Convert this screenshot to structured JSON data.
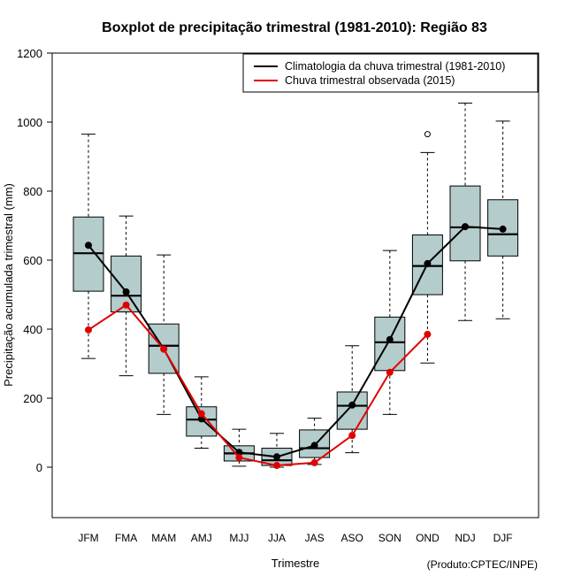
{
  "chart_data": {
    "type": "boxplot",
    "title": "Boxplot de precipitação trimestral (1981-2010): Região 83",
    "xlabel": "Trimestre",
    "ylabel": "Precipitação acumulada trimestral (mm)",
    "ylim": [
      -150,
      1200
    ],
    "yticks": [
      0,
      200,
      400,
      600,
      800,
      1000,
      1200
    ],
    "credit": "(Produto:CPTEC/INPE)",
    "categories": [
      "JFM",
      "FMA",
      "MAM",
      "AMJ",
      "MJJ",
      "JJA",
      "JAS",
      "ASO",
      "SON",
      "OND",
      "NDJ",
      "DJF"
    ],
    "boxes": [
      {
        "min": 315,
        "q1": 510,
        "median": 620,
        "q3": 725,
        "max": 965,
        "outliers": []
      },
      {
        "min": 265,
        "q1": 450,
        "median": 497,
        "q3": 612,
        "max": 728,
        "outliers": []
      },
      {
        "min": 153,
        "q1": 272,
        "median": 352,
        "q3": 415,
        "max": 615,
        "outliers": []
      },
      {
        "min": 55,
        "q1": 90,
        "median": 138,
        "q3": 175,
        "max": 262,
        "outliers": []
      },
      {
        "min": 3,
        "q1": 18,
        "median": 40,
        "q3": 62,
        "max": 110,
        "outliers": []
      },
      {
        "min": 0,
        "q1": 5,
        "median": 20,
        "q3": 55,
        "max": 98,
        "outliers": []
      },
      {
        "min": 8,
        "q1": 28,
        "median": 55,
        "q3": 108,
        "max": 142,
        "outliers": []
      },
      {
        "min": 42,
        "q1": 110,
        "median": 178,
        "q3": 218,
        "max": 352,
        "outliers": []
      },
      {
        "min": 153,
        "q1": 280,
        "median": 362,
        "q3": 435,
        "max": 628,
        "outliers": []
      },
      {
        "min": 302,
        "q1": 500,
        "median": 583,
        "q3": 673,
        "max": 912,
        "outliers": [
          965
        ]
      },
      {
        "min": 425,
        "q1": 598,
        "median": 695,
        "q3": 815,
        "max": 1055,
        "outliers": []
      },
      {
        "min": 430,
        "q1": 612,
        "median": 675,
        "q3": 775,
        "max": 1003,
        "outliers": []
      }
    ],
    "series": [
      {
        "name": "Climatologia da chuva trimestral (1981-2010)",
        "color": "#000000",
        "values": [
          643,
          508,
          343,
          140,
          43,
          30,
          63,
          180,
          370,
          590,
          697,
          690
        ]
      },
      {
        "name": "Chuva trimestral observada (2015)",
        "color": "#e00000",
        "values": [
          398,
          470,
          342,
          155,
          28,
          5,
          13,
          92,
          275,
          385,
          null,
          null
        ]
      }
    ],
    "box_fill": "#b4cccc",
    "legend_position": "top-right"
  }
}
